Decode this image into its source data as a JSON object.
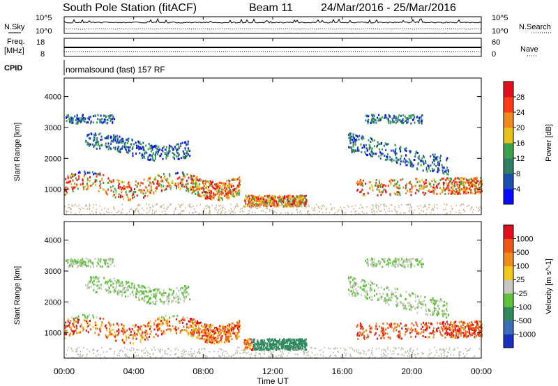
{
  "header": {
    "station": "South Pole Station (fitACF)",
    "beam": "Beam 11",
    "date_range": "24/Mar/2016 - 25/Mar/2016"
  },
  "strips": {
    "nsky_label": "N.Sky",
    "nsearch_label": "N.Search",
    "freq_label": "Freq.",
    "freq_unit": "[MHz]",
    "nave_label": "Nave",
    "cpid_label": "CPID",
    "cpid_text": "normalsound (fast) 157 RF",
    "left_ticks_noise": [
      "10^5",
      "10^0"
    ],
    "right_ticks_noise": [
      "10^5",
      "10^0"
    ],
    "left_ticks_freq": [
      "18",
      "8"
    ],
    "right_ticks_nave": [
      "60",
      "0"
    ]
  },
  "chart_data": [
    {
      "type": "heatmap",
      "name": "power",
      "ylabel": "Slant Range [km]",
      "xlabel": "Time UT",
      "x_ticks": [
        "00:00",
        "04:00",
        "08:00",
        "12:00",
        "16:00",
        "20:00",
        "00:00"
      ],
      "y_ticks": [
        "1000",
        "2000",
        "3000",
        "4000"
      ],
      "ylim": [
        180,
        4600
      ],
      "colorbar": {
        "label": "Power [dB]",
        "ticks": [
          "4",
          "8",
          "12",
          "16",
          "20",
          "24",
          "28"
        ],
        "colors": [
          "#0a0aff",
          "#1a4fb0",
          "#2f7f66",
          "#3aa24a",
          "#e8c21a",
          "#f08a1c",
          "#ff3a16",
          "#e0101c"
        ]
      }
    },
    {
      "type": "heatmap",
      "name": "velocity",
      "ylabel": "Slant Range [km]",
      "xlabel": "Time UT",
      "x_ticks": [
        "00:00",
        "04:00",
        "08:00",
        "12:00",
        "16:00",
        "20:00",
        "00:00"
      ],
      "y_ticks": [
        "1000",
        "2000",
        "3000",
        "4000"
      ],
      "ylim": [
        180,
        4600
      ],
      "colorbar": {
        "label": "Velocity [m s^-1]",
        "ticks": [
          "1000",
          "500",
          "100",
          "25",
          "-25",
          "-100",
          "-500",
          "-1000"
        ],
        "colors": [
          "#1a2fc0",
          "#3a6fb8",
          "#2f8a5f",
          "#5ec33a",
          "#c8c8c0",
          "#f0c81a",
          "#f08a1c",
          "#ee5a14",
          "#e0101c"
        ]
      }
    }
  ],
  "xlabel": "Time UT"
}
